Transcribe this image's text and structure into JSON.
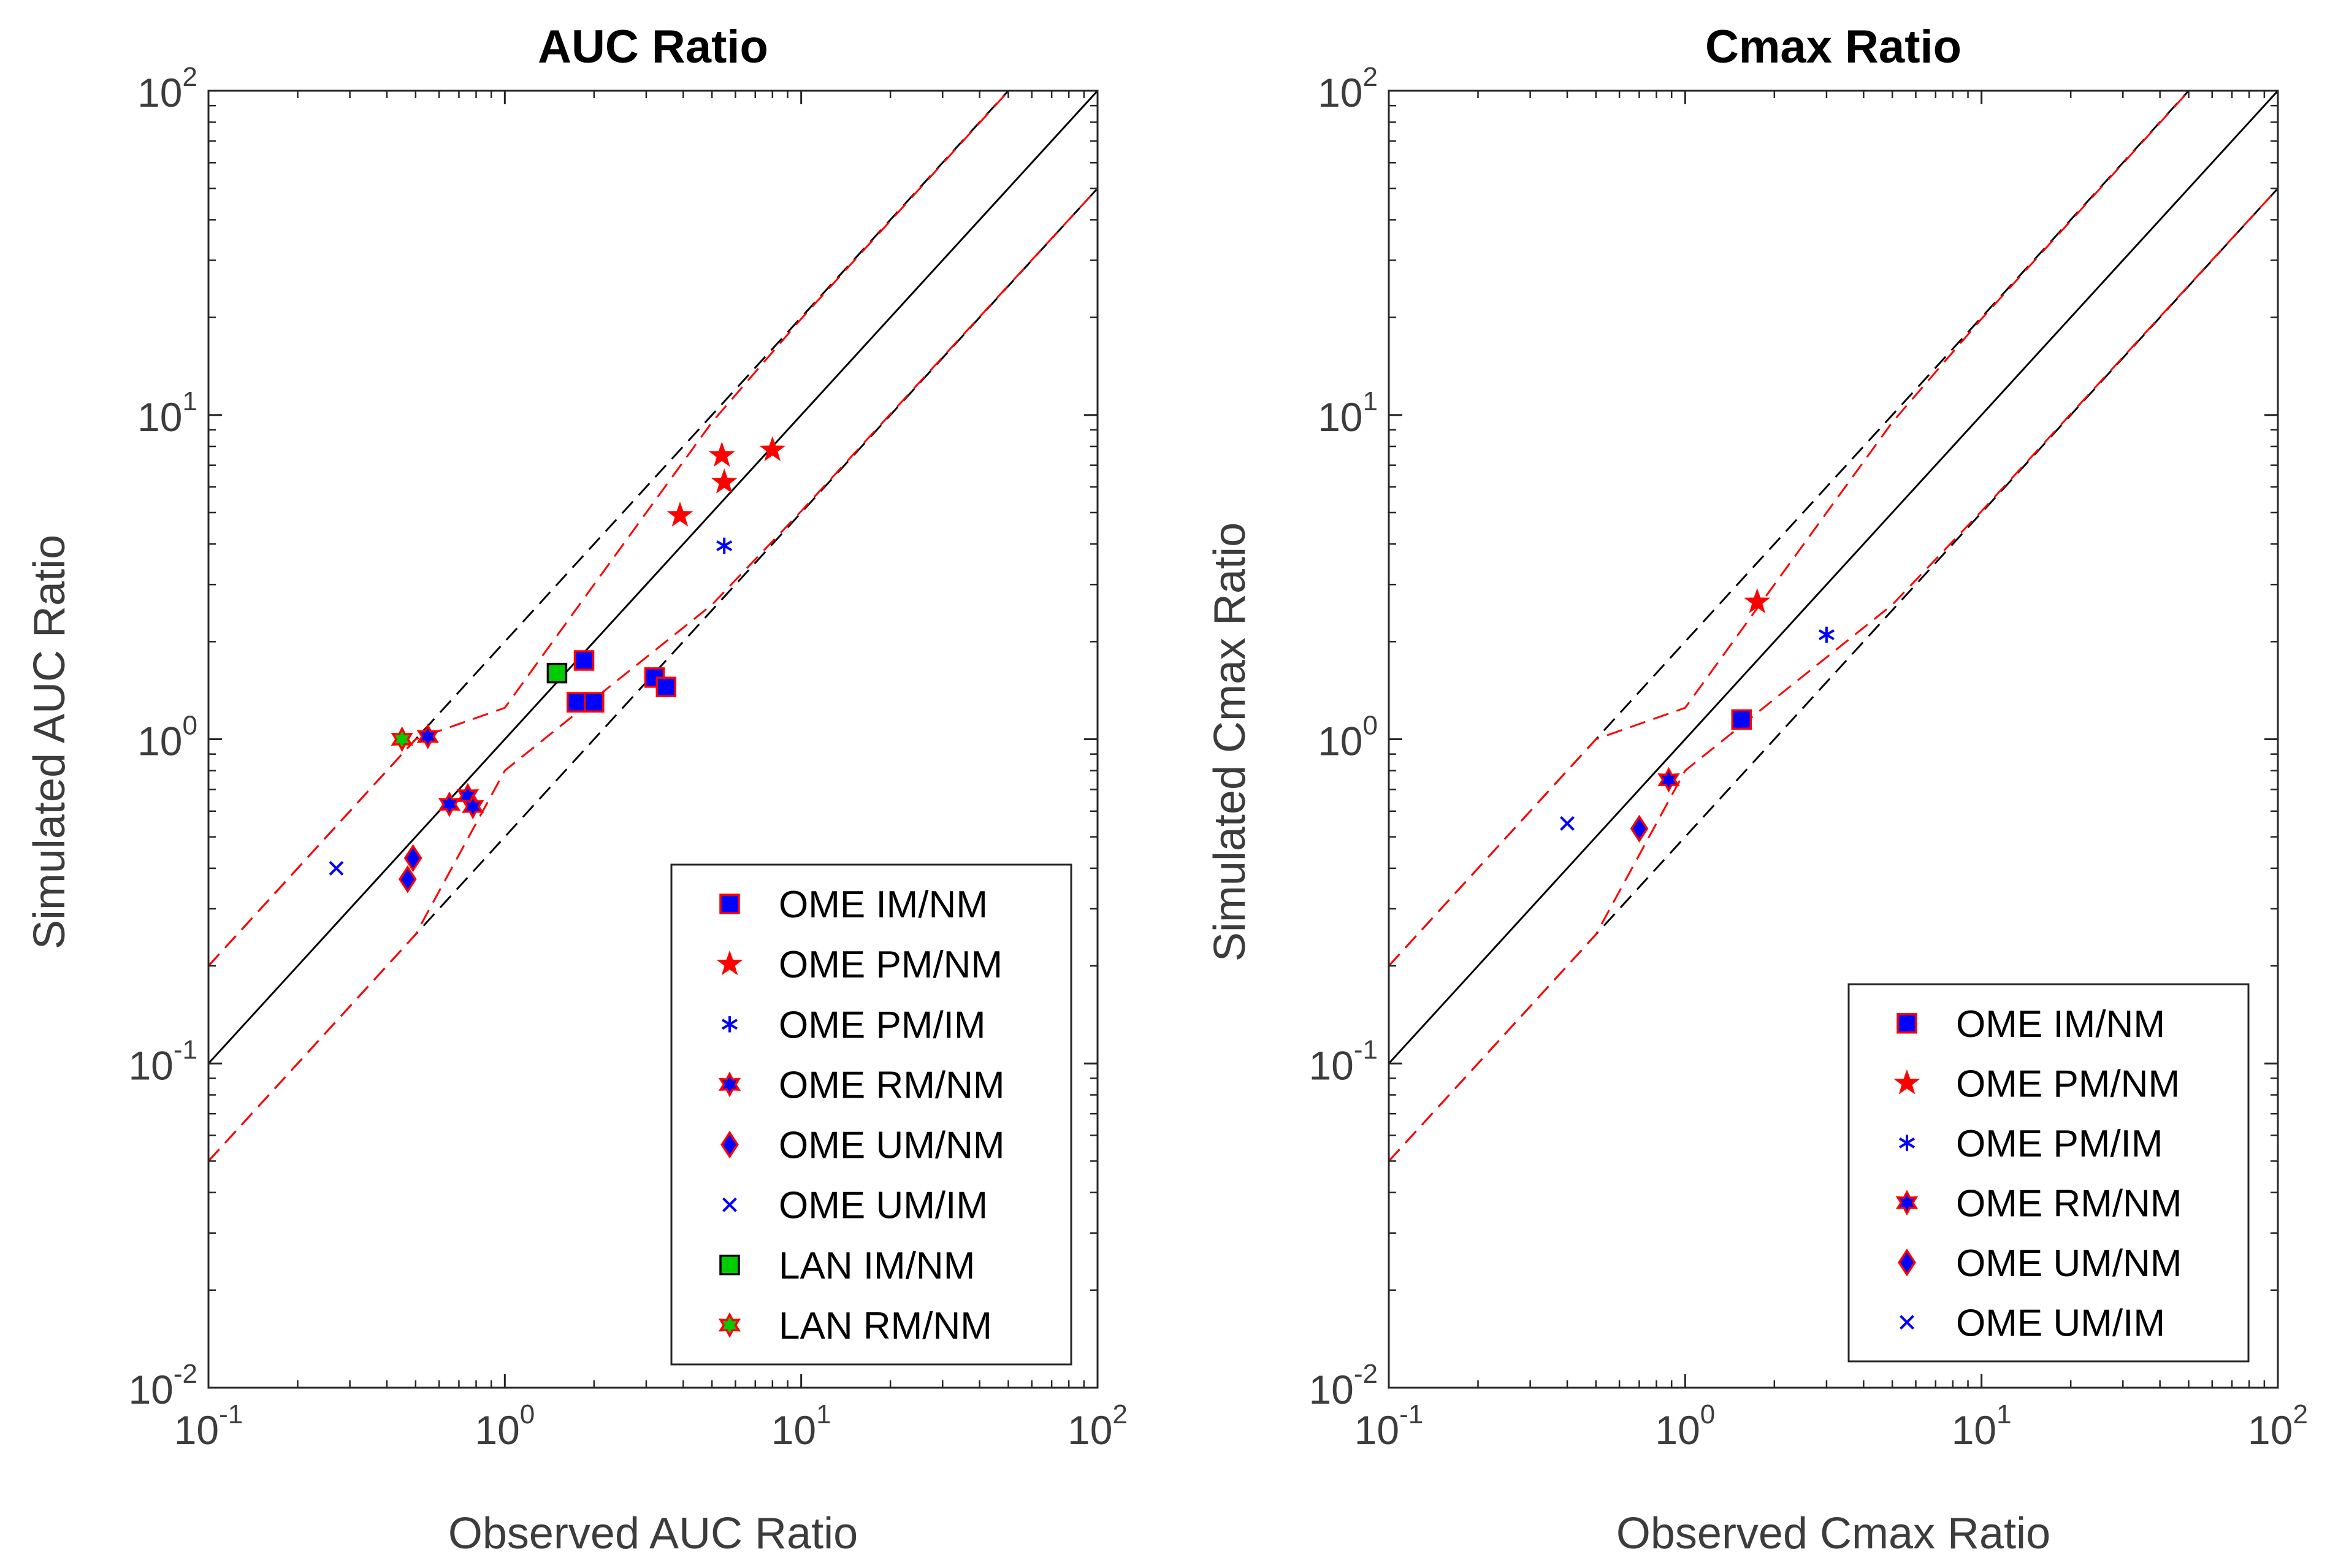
{
  "chart_data": [
    {
      "type": "scatter",
      "title": "AUC Ratio",
      "xlabel": "Observed AUC Ratio",
      "ylabel": "Simulated AUC Ratio",
      "xscale": "log",
      "yscale": "log",
      "xlim": [
        0.1,
        100
      ],
      "ylim": [
        0.01,
        100
      ],
      "x_ticks": [
        {
          "base": "10",
          "exp": "-1",
          "value": 0.1
        },
        {
          "base": "10",
          "exp": "0",
          "value": 1
        },
        {
          "base": "10",
          "exp": "1",
          "value": 10
        },
        {
          "base": "10",
          "exp": "2",
          "value": 100
        }
      ],
      "y_ticks": [
        {
          "base": "10",
          "exp": "-2",
          "value": 0.01
        },
        {
          "base": "10",
          "exp": "-1",
          "value": 0.1
        },
        {
          "base": "10",
          "exp": "0",
          "value": 1
        },
        {
          "base": "10",
          "exp": "1",
          "value": 10
        },
        {
          "base": "10",
          "exp": "2",
          "value": 100
        }
      ],
      "reference_lines": [
        {
          "name": "unity",
          "style": "solid",
          "color": "#000000",
          "factor": 1
        },
        {
          "name": "two-fold-upper",
          "style": "dashed",
          "color": "#000000",
          "factor": 2
        },
        {
          "name": "two-fold-lower",
          "style": "dashed",
          "color": "#000000",
          "factor": 0.5
        },
        {
          "name": "guest-upper",
          "style": "dashed",
          "color": "#ff0000",
          "points": [
            [
              0.1,
              0.2
            ],
            [
              0.5,
              1.0
            ],
            [
              1.0,
              1.25
            ],
            [
              2.0,
              3.0
            ],
            [
              5.0,
              9.5
            ],
            [
              10.0,
              19.8
            ],
            [
              100.0,
              200.0
            ]
          ]
        },
        {
          "name": "guest-lower",
          "style": "dashed",
          "color": "#ff0000",
          "points": [
            [
              0.1,
              0.05
            ],
            [
              0.5,
              0.25
            ],
            [
              1.0,
              0.8
            ],
            [
              2.0,
              1.33
            ],
            [
              5.0,
              2.6
            ],
            [
              10.0,
              5.05
            ],
            [
              100.0,
              50.0
            ]
          ]
        }
      ],
      "legend_location": "bottom-right",
      "series": [
        {
          "name": "OME IM/NM",
          "marker": "square",
          "color": "#0000ff",
          "edge": "#ff0000",
          "x": [
            1.85,
            1.75,
            2.0,
            3.2,
            3.5
          ],
          "y": [
            1.75,
            1.3,
            1.3,
            1.55,
            1.45
          ]
        },
        {
          "name": "OME PM/NM",
          "marker": "star5",
          "color": "#ff0000",
          "edge": "#ff0000",
          "x": [
            3.9,
            5.4,
            5.5,
            8.0
          ],
          "y": [
            4.9,
            7.5,
            6.2,
            7.8
          ]
        },
        {
          "name": "OME PM/IM",
          "marker": "asterisk",
          "color": "#0000ff",
          "edge": "#0000ff",
          "x": [
            5.5
          ],
          "y": [
            3.95
          ]
        },
        {
          "name": "OME RM/NM",
          "marker": "star6",
          "color": "#0000ff",
          "edge": "#ff0000",
          "x": [
            0.55,
            0.65,
            0.75,
            0.78
          ],
          "y": [
            1.02,
            0.63,
            0.67,
            0.62
          ]
        },
        {
          "name": "OME UM/NM",
          "marker": "diamond",
          "color": "#0000ff",
          "edge": "#ff0000",
          "x": [
            0.47,
            0.49
          ],
          "y": [
            0.37,
            0.43
          ]
        },
        {
          "name": "OME UM/IM",
          "marker": "x",
          "color": "#0000ff",
          "edge": "#0000ff",
          "x": [
            0.27
          ],
          "y": [
            0.4
          ]
        },
        {
          "name": "LAN IM/NM",
          "marker": "square",
          "color": "#00cc00",
          "edge": "#000000",
          "x": [
            1.5
          ],
          "y": [
            1.6
          ]
        },
        {
          "name": "LAN RM/NM",
          "marker": "star6",
          "color": "#00cc00",
          "edge": "#ff0000",
          "x": [
            0.45
          ],
          "y": [
            1.0
          ]
        }
      ]
    },
    {
      "type": "scatter",
      "title": "Cmax Ratio",
      "xlabel": "Observed Cmax Ratio",
      "ylabel": "Simulated Cmax Ratio",
      "xscale": "log",
      "yscale": "log",
      "xlim": [
        0.1,
        100
      ],
      "ylim": [
        0.01,
        100
      ],
      "x_ticks": [
        {
          "base": "10",
          "exp": "-1",
          "value": 0.1
        },
        {
          "base": "10",
          "exp": "0",
          "value": 1
        },
        {
          "base": "10",
          "exp": "1",
          "value": 10
        },
        {
          "base": "10",
          "exp": "2",
          "value": 100
        }
      ],
      "y_ticks": [
        {
          "base": "10",
          "exp": "-2",
          "value": 0.01
        },
        {
          "base": "10",
          "exp": "-1",
          "value": 0.1
        },
        {
          "base": "10",
          "exp": "0",
          "value": 1
        },
        {
          "base": "10",
          "exp": "1",
          "value": 10
        },
        {
          "base": "10",
          "exp": "2",
          "value": 100
        }
      ],
      "reference_lines": [
        {
          "name": "unity",
          "style": "solid",
          "color": "#000000",
          "factor": 1
        },
        {
          "name": "two-fold-upper",
          "style": "dashed",
          "color": "#000000",
          "factor": 2
        },
        {
          "name": "two-fold-lower",
          "style": "dashed",
          "color": "#000000",
          "factor": 0.5
        },
        {
          "name": "guest-upper",
          "style": "dashed",
          "color": "#ff0000",
          "points": [
            [
              0.1,
              0.2
            ],
            [
              0.5,
              1.0
            ],
            [
              1.0,
              1.25
            ],
            [
              2.0,
              3.0
            ],
            [
              5.0,
              9.5
            ],
            [
              10.0,
              19.8
            ],
            [
              100.0,
              200.0
            ]
          ]
        },
        {
          "name": "guest-lower",
          "style": "dashed",
          "color": "#ff0000",
          "points": [
            [
              0.1,
              0.05
            ],
            [
              0.5,
              0.25
            ],
            [
              1.0,
              0.8
            ],
            [
              2.0,
              1.33
            ],
            [
              5.0,
              2.6
            ],
            [
              10.0,
              5.05
            ],
            [
              100.0,
              50.0
            ]
          ]
        }
      ],
      "legend_location": "bottom-right",
      "series": [
        {
          "name": "OME IM/NM",
          "marker": "square",
          "color": "#0000ff",
          "edge": "#ff0000",
          "x": [
            1.55
          ],
          "y": [
            1.15
          ]
        },
        {
          "name": "OME PM/NM",
          "marker": "star5",
          "color": "#ff0000",
          "edge": "#ff0000",
          "x": [
            1.75
          ],
          "y": [
            2.65
          ]
        },
        {
          "name": "OME PM/IM",
          "marker": "asterisk",
          "color": "#0000ff",
          "edge": "#0000ff",
          "x": [
            3.0
          ],
          "y": [
            2.1
          ]
        },
        {
          "name": "OME RM/NM",
          "marker": "star6",
          "color": "#0000ff",
          "edge": "#ff0000",
          "x": [
            0.88
          ],
          "y": [
            0.75
          ]
        },
        {
          "name": "OME UM/NM",
          "marker": "diamond",
          "color": "#0000ff",
          "edge": "#ff0000",
          "x": [
            0.7
          ],
          "y": [
            0.53
          ]
        },
        {
          "name": "OME UM/IM",
          "marker": "x",
          "color": "#0000ff",
          "edge": "#0000ff",
          "x": [
            0.4
          ],
          "y": [
            0.55
          ]
        }
      ]
    }
  ]
}
